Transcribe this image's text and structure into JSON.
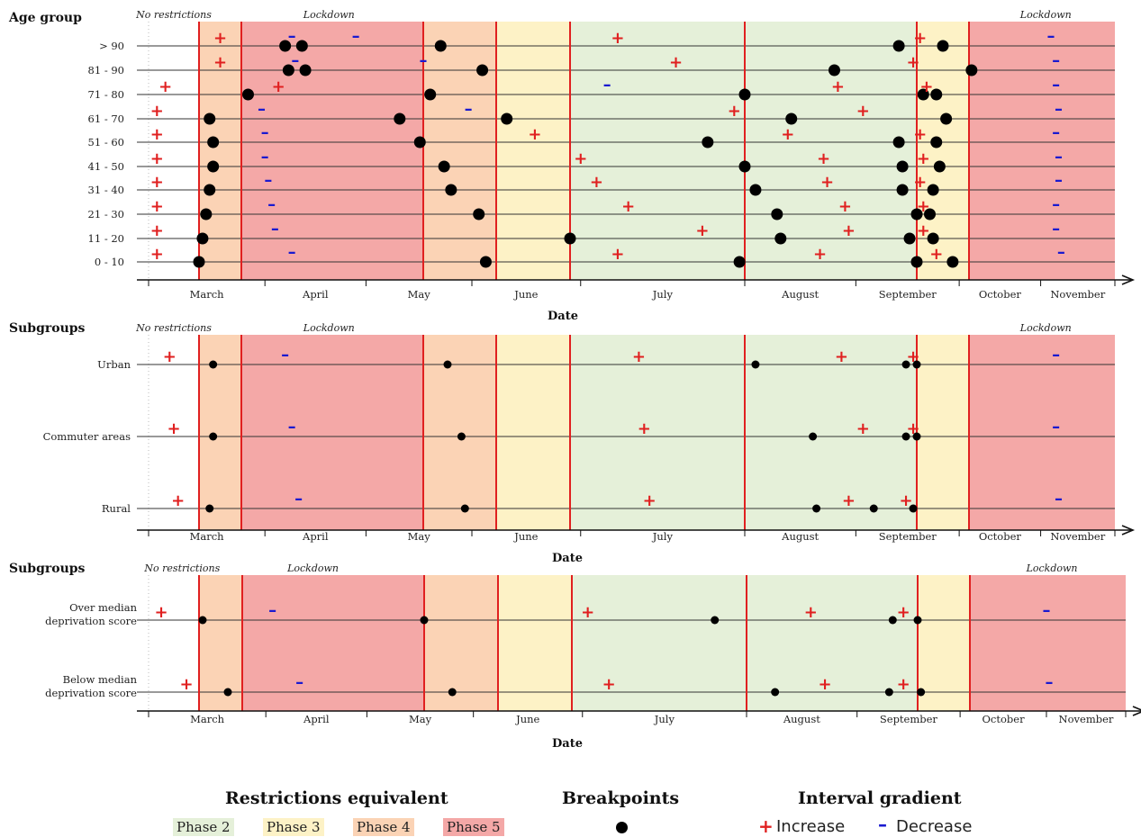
{
  "colors": {
    "phase2": "#e5f0d9",
    "phase3": "#fdf2c6",
    "phase4": "#fbd3b5",
    "phase5": "#f4a8a7",
    "phase_line": "#e02020",
    "increase": "#e02020",
    "decrease": "#1a1ad0",
    "breakpoint": "#000000",
    "axis": "#111111"
  },
  "panel_labels": {
    "no_restrictions": "No restrictions",
    "lockdown": "Lockdown"
  },
  "legend": {
    "restrictions_title": "Restrictions equivalent",
    "phases": [
      "Phase 2",
      "Phase 3",
      "Phase 4",
      "Phase 5"
    ],
    "breakpoints_title": "Breakpoints",
    "gradient_title": "Interval gradient",
    "increase": "Increase",
    "decrease": "Decrease"
  },
  "chart_data": [
    {
      "type": "scatter",
      "title": "Age group",
      "xlabel": "Date",
      "x_ticks": [
        "March",
        "April",
        "May",
        "June",
        "July",
        "August",
        "September",
        "October",
        "November"
      ],
      "xlim": [
        "2020-03-01",
        "2020-11-30"
      ],
      "phases": [
        {
          "from": "2020-03-01",
          "to": "2020-03-13",
          "phase": "none"
        },
        {
          "from": "2020-03-13",
          "to": "2020-03-25",
          "phase": "Phase 4"
        },
        {
          "from": "2020-03-25",
          "to": "2020-05-18",
          "phase": "Phase 5"
        },
        {
          "from": "2020-05-18",
          "to": "2020-06-08",
          "phase": "Phase 4"
        },
        {
          "from": "2020-06-08",
          "to": "2020-06-29",
          "phase": "Phase 3"
        },
        {
          "from": "2020-06-29",
          "to": "2020-09-18",
          "phase": "Phase 2"
        },
        {
          "from": "2020-09-18",
          "to": "2020-10-04",
          "phase": "Phase 3"
        },
        {
          "from": "2020-10-04",
          "to": "2020-11-30",
          "phase": "Phase 5"
        }
      ],
      "phase_lines": [
        "2020-03-13",
        "2020-03-25",
        "2020-05-18",
        "2020-06-08",
        "2020-06-29",
        "2020-08-01",
        "2020-09-18",
        "2020-10-04"
      ],
      "top_labels": [
        {
          "text": "No restrictions",
          "date": "2020-03-07"
        },
        {
          "text": "Lockdown",
          "date": "2020-04-20"
        },
        {
          "text": "Lockdown",
          "date": "2020-11-03"
        }
      ],
      "rows": [
        {
          "label": "> 90",
          "breakpoints": [
            "2020-04-07",
            "2020-04-12",
            "2020-05-23",
            "2020-09-13",
            "2020-09-26"
          ],
          "increases": [
            "2020-03-19",
            "2020-07-08",
            "2020-09-19"
          ],
          "decreases": [
            "2020-04-09",
            "2020-04-28",
            "2020-11-05"
          ]
        },
        {
          "label": "81 - 90",
          "breakpoints": [
            "2020-04-08",
            "2020-04-13",
            "2020-06-04",
            "2020-08-26",
            "2020-10-05"
          ],
          "increases": [
            "2020-03-19",
            "2020-07-19",
            "2020-09-17"
          ],
          "decreases": [
            "2020-04-10",
            "2020-05-18",
            "2020-11-07"
          ]
        },
        {
          "label": "71 - 80",
          "breakpoints": [
            "2020-03-27",
            "2020-05-20",
            "2020-08-01",
            "2020-09-20",
            "2020-09-24"
          ],
          "increases": [
            "2020-03-05",
            "2020-04-05",
            "2020-08-27",
            "2020-09-21"
          ],
          "decreases": [
            "2020-07-06",
            "2020-11-07"
          ]
        },
        {
          "label": "61 - 70",
          "breakpoints": [
            "2020-03-16",
            "2020-05-11",
            "2020-06-11",
            "2020-08-14",
            "2020-09-27"
          ],
          "increases": [
            "2020-03-03",
            "2020-07-30",
            "2020-09-03"
          ],
          "decreases": [
            "2020-03-31",
            "2020-05-31",
            "2020-11-08"
          ]
        },
        {
          "label": "51 - 60",
          "breakpoints": [
            "2020-03-17",
            "2020-05-17",
            "2020-07-25",
            "2020-09-13",
            "2020-09-24"
          ],
          "increases": [
            "2020-03-03",
            "2020-06-19",
            "2020-08-13",
            "2020-09-19"
          ],
          "decreases": [
            "2020-04-01",
            "2020-11-07"
          ]
        },
        {
          "label": "41 - 50",
          "breakpoints": [
            "2020-03-17",
            "2020-05-24",
            "2020-08-01",
            "2020-09-14",
            "2020-09-25"
          ],
          "increases": [
            "2020-03-03",
            "2020-07-01",
            "2020-08-23",
            "2020-09-20"
          ],
          "decreases": [
            "2020-04-01",
            "2020-11-08"
          ]
        },
        {
          "label": "31 - 40",
          "breakpoints": [
            "2020-03-16",
            "2020-05-26",
            "2020-08-04",
            "2020-09-14",
            "2020-09-23"
          ],
          "increases": [
            "2020-03-03",
            "2020-07-04",
            "2020-08-24",
            "2020-09-19"
          ],
          "decreases": [
            "2020-04-02",
            "2020-11-08"
          ]
        },
        {
          "label": "21 - 30",
          "breakpoints": [
            "2020-03-15",
            "2020-06-03",
            "2020-08-10",
            "2020-09-18",
            "2020-09-22"
          ],
          "increases": [
            "2020-03-03",
            "2020-07-10",
            "2020-08-29",
            "2020-09-20"
          ],
          "decreases": [
            "2020-04-03",
            "2020-11-07"
          ]
        },
        {
          "label": "11 - 20",
          "breakpoints": [
            "2020-03-14",
            "2020-06-29",
            "2020-08-11",
            "2020-09-16",
            "2020-09-23"
          ],
          "increases": [
            "2020-03-03",
            "2020-07-24",
            "2020-08-30",
            "2020-09-20"
          ],
          "decreases": [
            "2020-04-04",
            "2020-11-07"
          ]
        },
        {
          "label": "0 - 10",
          "breakpoints": [
            "2020-03-13",
            "2020-06-05",
            "2020-07-31",
            "2020-09-18",
            "2020-09-29"
          ],
          "increases": [
            "2020-03-03",
            "2020-07-08",
            "2020-08-22",
            "2020-09-24"
          ],
          "decreases": [
            "2020-04-09",
            "2020-11-09"
          ]
        }
      ]
    },
    {
      "type": "scatter",
      "title": "Subgroups",
      "xlabel": "Date",
      "x_ticks": [
        "March",
        "April",
        "May",
        "June",
        "July",
        "August",
        "September",
        "October",
        "November"
      ],
      "xlim": [
        "2020-03-01",
        "2020-11-30"
      ],
      "phases": [
        {
          "from": "2020-03-01",
          "to": "2020-03-13",
          "phase": "none"
        },
        {
          "from": "2020-03-13",
          "to": "2020-03-25",
          "phase": "Phase 4"
        },
        {
          "from": "2020-03-25",
          "to": "2020-05-18",
          "phase": "Phase 5"
        },
        {
          "from": "2020-05-18",
          "to": "2020-06-08",
          "phase": "Phase 4"
        },
        {
          "from": "2020-06-08",
          "to": "2020-06-29",
          "phase": "Phase 3"
        },
        {
          "from": "2020-06-29",
          "to": "2020-09-18",
          "phase": "Phase 2"
        },
        {
          "from": "2020-09-18",
          "to": "2020-10-04",
          "phase": "Phase 3"
        },
        {
          "from": "2020-10-04",
          "to": "2020-11-30",
          "phase": "Phase 5"
        }
      ],
      "phase_lines": [
        "2020-03-13",
        "2020-03-25",
        "2020-05-18",
        "2020-06-08",
        "2020-06-29",
        "2020-08-01",
        "2020-09-18",
        "2020-10-04"
      ],
      "top_labels": [
        {
          "text": "No restrictions",
          "date": "2020-03-07"
        },
        {
          "text": "Lockdown",
          "date": "2020-04-20"
        },
        {
          "text": "Lockdown",
          "date": "2020-11-03"
        }
      ],
      "rows": [
        {
          "label": "Urban",
          "breakpoints": [
            "2020-03-17",
            "2020-05-25",
            "2020-08-04",
            "2020-09-15",
            "2020-09-18"
          ],
          "increases": [
            "2020-03-06",
            "2020-07-12",
            "2020-08-28",
            "2020-09-17"
          ],
          "decreases": [
            "2020-04-07",
            "2020-11-07"
          ]
        },
        {
          "label": "Commuter areas",
          "breakpoints": [
            "2020-03-17",
            "2020-05-29",
            "2020-08-20",
            "2020-09-15",
            "2020-09-18"
          ],
          "increases": [
            "2020-03-07",
            "2020-07-13",
            "2020-09-03",
            "2020-09-17"
          ],
          "decreases": [
            "2020-04-09",
            "2020-11-07"
          ]
        },
        {
          "label": "Rural",
          "breakpoints": [
            "2020-03-16",
            "2020-05-30",
            "2020-08-21",
            "2020-09-06",
            "2020-09-17"
          ],
          "increases": [
            "2020-03-08",
            "2020-07-14",
            "2020-08-30",
            "2020-09-15"
          ],
          "decreases": [
            "2020-04-11",
            "2020-11-08"
          ]
        }
      ]
    },
    {
      "type": "scatter",
      "title": "Subgroups",
      "xlabel": "Date",
      "x_ticks": [
        "March",
        "April",
        "May",
        "June",
        "July",
        "August",
        "September",
        "October",
        "November"
      ],
      "xlim": [
        "2020-03-01",
        "2020-11-30"
      ],
      "phases": [
        {
          "from": "2020-03-01",
          "to": "2020-03-13",
          "phase": "none"
        },
        {
          "from": "2020-03-13",
          "to": "2020-03-25",
          "phase": "Phase 4"
        },
        {
          "from": "2020-03-25",
          "to": "2020-05-18",
          "phase": "Phase 5"
        },
        {
          "from": "2020-05-18",
          "to": "2020-06-08",
          "phase": "Phase 4"
        },
        {
          "from": "2020-06-08",
          "to": "2020-06-29",
          "phase": "Phase 3"
        },
        {
          "from": "2020-06-29",
          "to": "2020-09-18",
          "phase": "Phase 2"
        },
        {
          "from": "2020-09-18",
          "to": "2020-10-04",
          "phase": "Phase 3"
        },
        {
          "from": "2020-10-04",
          "to": "2020-11-30",
          "phase": "Phase 5"
        }
      ],
      "phase_lines": [
        "2020-03-13",
        "2020-03-25",
        "2020-05-18",
        "2020-06-08",
        "2020-06-29",
        "2020-08-01",
        "2020-09-18",
        "2020-10-04"
      ],
      "top_labels": [
        {
          "text": "No restrictions",
          "date": "2020-03-09"
        },
        {
          "text": "Lockdown",
          "date": "2020-04-15"
        },
        {
          "text": "Lockdown",
          "date": "2020-11-03"
        }
      ],
      "rows": [
        {
          "label": [
            "Over median",
            "deprivation score"
          ],
          "breakpoints": [
            "2020-03-14",
            "2020-05-18",
            "2020-07-26",
            "2020-09-11",
            "2020-09-18"
          ],
          "increases": [
            "2020-03-04",
            "2020-07-02",
            "2020-08-19",
            "2020-09-14"
          ],
          "decreases": [
            "2020-04-03",
            "2020-11-01"
          ]
        },
        {
          "label": [
            "Below median",
            "deprivation score"
          ],
          "breakpoints": [
            "2020-03-21",
            "2020-05-26",
            "2020-08-09",
            "2020-09-10",
            "2020-09-19"
          ],
          "increases": [
            "2020-03-10",
            "2020-07-06",
            "2020-08-23",
            "2020-09-14"
          ],
          "decreases": [
            "2020-04-11",
            "2020-11-02"
          ]
        }
      ]
    }
  ]
}
